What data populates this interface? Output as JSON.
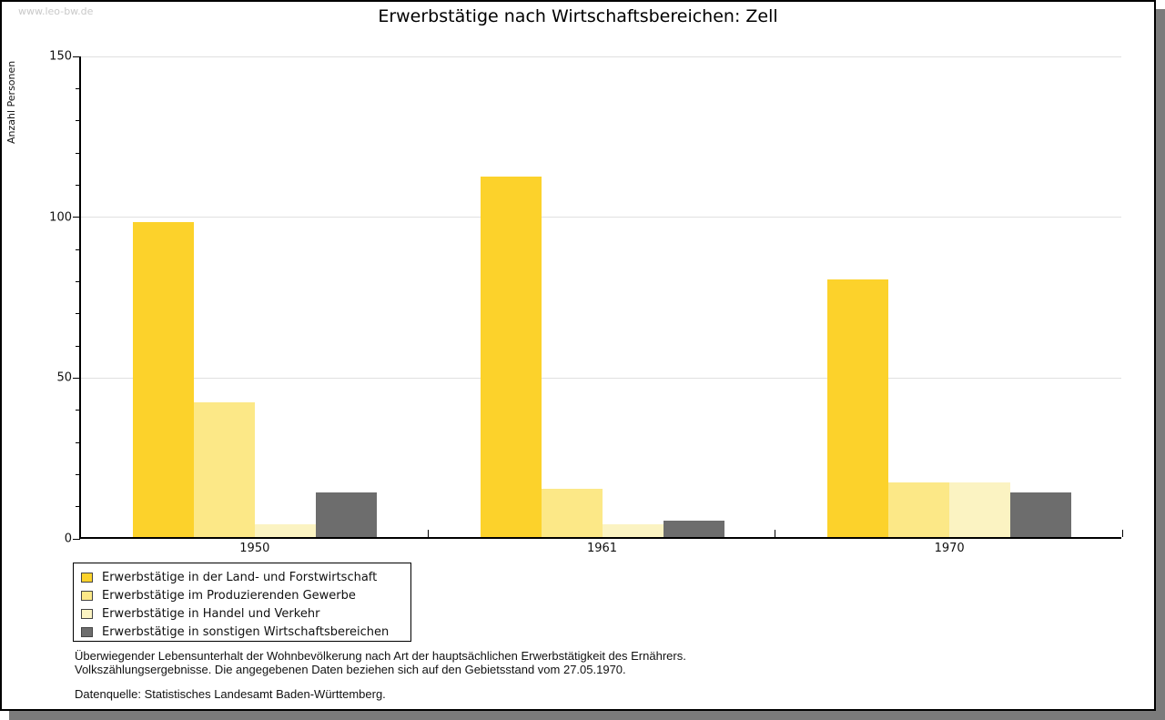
{
  "watermark": "www.leo-bw.de",
  "header": {
    "title": "Erwerbstätige nach Wirtschaftsbereichen: Zell"
  },
  "chart_data": {
    "type": "bar",
    "title": "Erwerbstätige nach Wirtschaftsbereichen: Zell",
    "xlabel": "",
    "ylabel": "Anzahl Personen",
    "categories": [
      "1950",
      "1961",
      "1970"
    ],
    "series": [
      {
        "name": "Erwerbstätige in der Land- und Forstwirtschaft",
        "color": "#FCD22B",
        "values": [
          98,
          112,
          80
        ]
      },
      {
        "name": "Erwerbstätige im Produzierenden Gewerbe",
        "color": "#FCE887",
        "values": [
          42,
          15,
          17
        ]
      },
      {
        "name": "Erwerbstätige in Handel und Verkehr",
        "color": "#FBF3C2",
        "values": [
          4,
          4,
          17
        ]
      },
      {
        "name": "Erwerbstätige in sonstigen Wirtschaftsbereichen",
        "color": "#6D6D6D",
        "values": [
          14,
          5,
          14
        ]
      }
    ],
    "ylim": [
      0,
      150
    ],
    "y_major_ticks": [
      0,
      50,
      100,
      150
    ],
    "y_minor_step": 10,
    "grid": "horizontal gridlines at 50, 100, 150",
    "legend_position": "boxed legend below plot, bottom-left"
  },
  "footnote": {
    "line1": "Überwiegender Lebensunterhalt der Wohnbevölkerung nach Art der hauptsächlichen Erwerbstätigkeit des Ernährers.",
    "line2": "Volkszählungsergebnisse. Die angegebenen Daten beziehen sich auf den Gebietsstand vom 27.05.1970.",
    "source": "Datenquelle: Statistisches Landesamt Baden-Württemberg."
  },
  "colors": {
    "frame_border": "#000000",
    "frame_shadow": "#7b7b7b",
    "gridline": "#e0e0e0",
    "watermark": "#c9c9c9"
  }
}
